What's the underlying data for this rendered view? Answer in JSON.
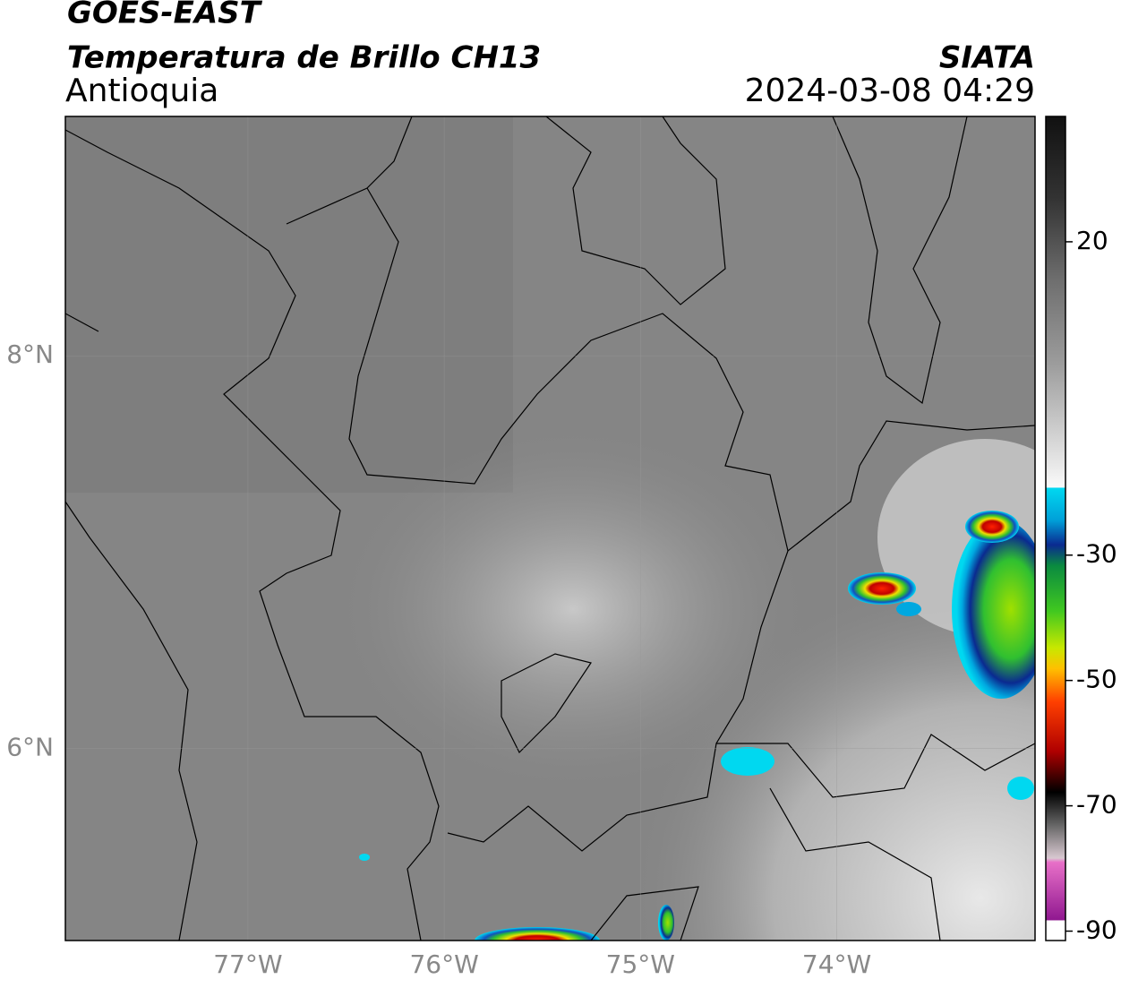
{
  "header": {
    "satellite": "GOES-EAST",
    "product": "Temperatura de Brillo CH13",
    "region": "Antioquia",
    "agency": "SIATA",
    "datetime": "2024-03-08 04:29"
  },
  "map": {
    "xlim": [
      -77.93,
      -72.99
    ],
    "ylim": [
      5.02,
      9.22
    ],
    "xticks": [
      {
        "value": -77,
        "label": "77°W"
      },
      {
        "value": -76,
        "label": "76°W"
      },
      {
        "value": -75,
        "label": "75°W"
      },
      {
        "value": -74,
        "label": "74°W"
      }
    ],
    "yticks": [
      {
        "value": 8,
        "label": "8°N"
      },
      {
        "value": 6,
        "label": "6°N"
      }
    ]
  },
  "colorbar": {
    "lim": [
      -91.5,
      40
    ],
    "ticks": [
      20,
      -30,
      -50,
      -70,
      -90
    ]
  }
}
